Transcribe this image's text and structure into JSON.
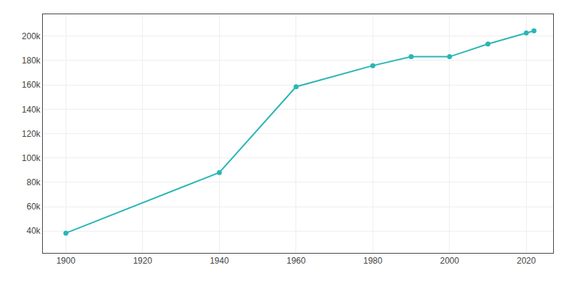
{
  "chart_data": {
    "type": "line",
    "x": [
      1900,
      1940,
      1960,
      1980,
      1990,
      2000,
      2010,
      2020,
      2022
    ],
    "values": [
      38307,
      88039,
      158461,
      175795,
      183133,
      183133,
      193524,
      202591,
      204405
    ],
    "color": "#2ab5b5",
    "marker": "circle",
    "xlim": [
      1894,
      2027
    ],
    "ylim": [
      22000,
      218000
    ],
    "xticks": [
      1900,
      1920,
      1940,
      1960,
      1980,
      2000,
      2020
    ],
    "yticks": [
      {
        "value": 40000,
        "label": "40k"
      },
      {
        "value": 60000,
        "label": "60k"
      },
      {
        "value": 80000,
        "label": "80k"
      },
      {
        "value": 100000,
        "label": "100k"
      },
      {
        "value": 120000,
        "label": "120k"
      },
      {
        "value": 140000,
        "label": "140k"
      },
      {
        "value": 160000,
        "label": "160k"
      },
      {
        "value": 180000,
        "label": "180k"
      },
      {
        "value": 200000,
        "label": "200k"
      }
    ],
    "grid": true
  }
}
